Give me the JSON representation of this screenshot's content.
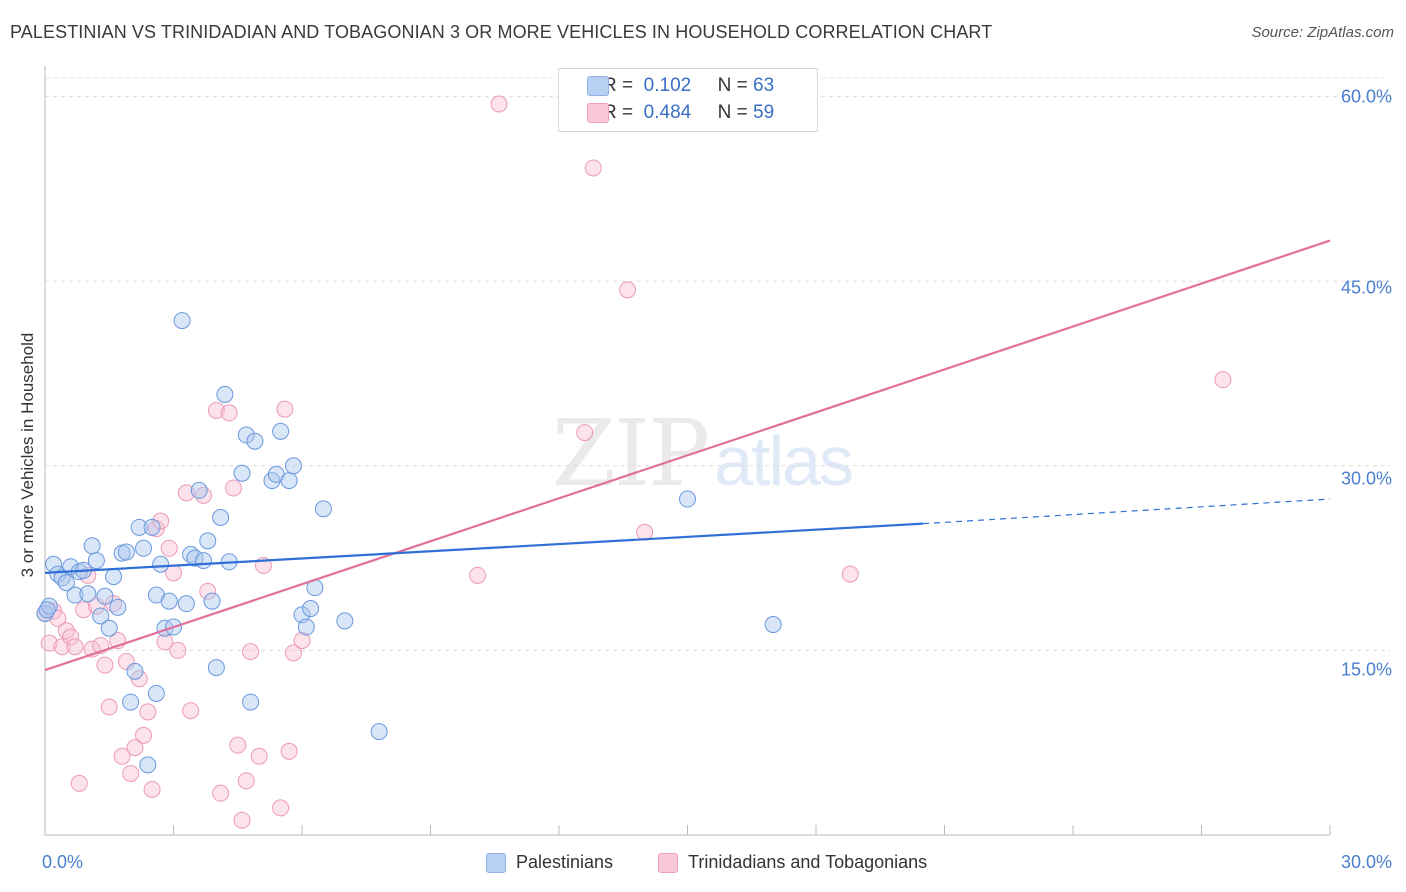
{
  "header": {
    "title": "PALESTINIAN VS TRINIDADIAN AND TOBAGONIAN 3 OR MORE VEHICLES IN HOUSEHOLD CORRELATION CHART",
    "source": "Source: ZipAtlas.com"
  },
  "watermark": {
    "zip": "ZIP",
    "atlas": "atlas"
  },
  "legend": {
    "r_label": "R =",
    "n_label": "N =",
    "series1": {
      "r": "0.102",
      "n": "63"
    },
    "series2": {
      "r": "0.484",
      "n": "59"
    }
  },
  "bottom_legend": {
    "series1": "Palestinians",
    "series2": "Trinidadians and Tobagonians"
  },
  "chart_data": {
    "type": "scatter",
    "title": "PALESTINIAN VS TRINIDADIAN AND TOBAGONIAN 3 OR MORE VEHICLES IN HOUSEHOLD CORRELATION CHART",
    "xlabel": "",
    "ylabel": "3 or more Vehicles in Household",
    "xlim": [
      0,
      30
    ],
    "ylim": [
      0,
      62
    ],
    "x_tick_labels": [
      "0.0%",
      "30.0%"
    ],
    "y_ticks": [
      15,
      30,
      45,
      60
    ],
    "y_tick_labels": [
      "15.0%",
      "30.0%",
      "45.0%",
      "60.0%"
    ],
    "grid": true,
    "colors": {
      "series1": "#6fa0e0",
      "series2": "#f0a0bc",
      "line1": "#2f6fd6",
      "line2": "#e0709a"
    },
    "series": [
      {
        "name": "Palestinians",
        "r": 0.102,
        "n": 63,
        "trend": {
          "x0": 0,
          "y0": 21.3,
          "x1": 20.5,
          "y1": 25.3,
          "dash_to_x": 30,
          "dash_to_y": 27.3
        },
        "points": [
          [
            0.0,
            18.0
          ],
          [
            0.1,
            18.6
          ],
          [
            0.2,
            22.0
          ],
          [
            0.3,
            21.2
          ],
          [
            0.4,
            20.9
          ],
          [
            0.5,
            20.5
          ],
          [
            0.6,
            21.8
          ],
          [
            0.7,
            19.5
          ],
          [
            0.8,
            21.4
          ],
          [
            0.9,
            21.5
          ],
          [
            1.0,
            19.6
          ],
          [
            1.1,
            23.5
          ],
          [
            1.2,
            22.3
          ],
          [
            1.3,
            17.8
          ],
          [
            1.4,
            19.4
          ],
          [
            1.5,
            16.8
          ],
          [
            1.6,
            21.0
          ],
          [
            1.7,
            18.5
          ],
          [
            1.8,
            22.9
          ],
          [
            1.9,
            23.0
          ],
          [
            2.0,
            10.8
          ],
          [
            2.1,
            13.3
          ],
          [
            2.2,
            25.0
          ],
          [
            2.3,
            23.3
          ],
          [
            2.4,
            5.7
          ],
          [
            2.5,
            25.0
          ],
          [
            2.6,
            19.5
          ],
          [
            2.7,
            22.0
          ],
          [
            2.8,
            16.8
          ],
          [
            2.9,
            19.0
          ],
          [
            3.0,
            16.9
          ],
          [
            3.2,
            41.8
          ],
          [
            3.3,
            18.8
          ],
          [
            3.4,
            22.8
          ],
          [
            3.5,
            22.5
          ],
          [
            3.6,
            28.0
          ],
          [
            3.7,
            22.3
          ],
          [
            3.8,
            23.9
          ],
          [
            3.9,
            19.0
          ],
          [
            4.0,
            13.6
          ],
          [
            4.1,
            25.8
          ],
          [
            4.2,
            35.8
          ],
          [
            4.3,
            22.2
          ],
          [
            4.6,
            29.4
          ],
          [
            4.7,
            32.5
          ],
          [
            4.8,
            10.8
          ],
          [
            4.9,
            32.0
          ],
          [
            5.3,
            28.8
          ],
          [
            5.4,
            29.3
          ],
          [
            5.5,
            32.8
          ],
          [
            5.7,
            28.8
          ],
          [
            5.8,
            30.0
          ],
          [
            6.0,
            17.9
          ],
          [
            6.1,
            16.9
          ],
          [
            6.2,
            18.4
          ],
          [
            6.3,
            20.1
          ],
          [
            6.5,
            26.5
          ],
          [
            7.0,
            17.4
          ],
          [
            7.8,
            8.4
          ],
          [
            15.0,
            27.3
          ],
          [
            17.0,
            17.1
          ],
          [
            0.05,
            18.3
          ],
          [
            2.6,
            11.5
          ]
        ]
      },
      {
        "name": "Trinidadians and Tobagonians",
        "r": 0.484,
        "n": 59,
        "trend": {
          "x0": 0,
          "y0": 13.4,
          "x1": 30,
          "y1": 48.3
        },
        "points": [
          [
            0.0,
            18.0
          ],
          [
            0.1,
            15.6
          ],
          [
            0.2,
            18.2
          ],
          [
            0.3,
            17.6
          ],
          [
            0.4,
            15.3
          ],
          [
            0.5,
            16.6
          ],
          [
            0.6,
            16.1
          ],
          [
            0.7,
            15.3
          ],
          [
            0.8,
            4.2
          ],
          [
            0.9,
            18.3
          ],
          [
            1.0,
            21.1
          ],
          [
            1.1,
            15.1
          ],
          [
            1.2,
            18.6
          ],
          [
            1.3,
            15.4
          ],
          [
            1.4,
            13.8
          ],
          [
            1.5,
            10.4
          ],
          [
            1.6,
            18.8
          ],
          [
            1.7,
            15.8
          ],
          [
            1.8,
            6.4
          ],
          [
            1.9,
            14.1
          ],
          [
            2.0,
            5.0
          ],
          [
            2.1,
            7.1
          ],
          [
            2.2,
            12.7
          ],
          [
            2.3,
            8.1
          ],
          [
            2.4,
            10.0
          ],
          [
            2.5,
            3.7
          ],
          [
            2.6,
            24.9
          ],
          [
            2.7,
            25.5
          ],
          [
            2.8,
            15.7
          ],
          [
            2.9,
            23.3
          ],
          [
            3.0,
            21.3
          ],
          [
            3.1,
            15.0
          ],
          [
            3.3,
            27.8
          ],
          [
            3.4,
            10.1
          ],
          [
            3.7,
            27.6
          ],
          [
            3.8,
            19.8
          ],
          [
            4.0,
            34.5
          ],
          [
            4.1,
            3.4
          ],
          [
            4.3,
            34.3
          ],
          [
            4.4,
            28.2
          ],
          [
            4.5,
            7.3
          ],
          [
            4.6,
            1.2
          ],
          [
            4.7,
            4.4
          ],
          [
            4.8,
            14.9
          ],
          [
            5.0,
            6.4
          ],
          [
            5.1,
            21.9
          ],
          [
            5.5,
            2.2
          ],
          [
            5.6,
            34.6
          ],
          [
            5.7,
            6.8
          ],
          [
            5.8,
            14.8
          ],
          [
            6.0,
            15.8
          ],
          [
            10.1,
            21.1
          ],
          [
            10.6,
            59.4
          ],
          [
            12.6,
            32.7
          ],
          [
            12.8,
            54.2
          ],
          [
            13.6,
            44.3
          ],
          [
            14.0,
            24.6
          ],
          [
            18.8,
            21.2
          ],
          [
            27.5,
            37.0
          ]
        ]
      }
    ]
  }
}
